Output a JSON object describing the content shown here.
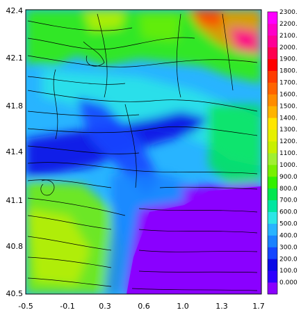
{
  "chart_data": {
    "type": "heatmap",
    "title": "",
    "xlabel": "",
    "ylabel": "",
    "x_ticks": [
      "-0.5",
      "-0.1",
      "0.3",
      "0.6",
      "1.0",
      "1.3",
      "1.7"
    ],
    "y_ticks": [
      "42.4",
      "42.1",
      "41.8",
      "41.4",
      "41.1",
      "40.8",
      "40.5"
    ],
    "xlim": [
      -0.5,
      1.7
    ],
    "ylim": [
      40.5,
      42.4
    ],
    "overlay": "streamlines",
    "colorbar": {
      "labels": [
        "0.000",
        "100.0",
        "200.0",
        "300.0",
        "400.0",
        "500.0",
        "600.0",
        "700.0",
        "800.0",
        "900.0",
        "1000.",
        "1100.",
        "1200.",
        "1300.",
        "1400.",
        "1500.",
        "1600.",
        "1700.",
        "1800.",
        "1900.",
        "2000.",
        "2100.",
        "2200.",
        "2300."
      ],
      "colors": [
        "#8a00ff",
        "#2e00ff",
        "#0a0ae6",
        "#1446ff",
        "#1a82ff",
        "#28b4ff",
        "#2ce6e6",
        "#00e6a0",
        "#00e650",
        "#32f000",
        "#78f000",
        "#a0f032",
        "#c8f000",
        "#e6f000",
        "#ffe600",
        "#ffb400",
        "#ff8c00",
        "#ff6400",
        "#ff3c00",
        "#ff0000",
        "#ff0050",
        "#ff0096",
        "#ff00c8",
        "#ff00ff"
      ]
    }
  }
}
